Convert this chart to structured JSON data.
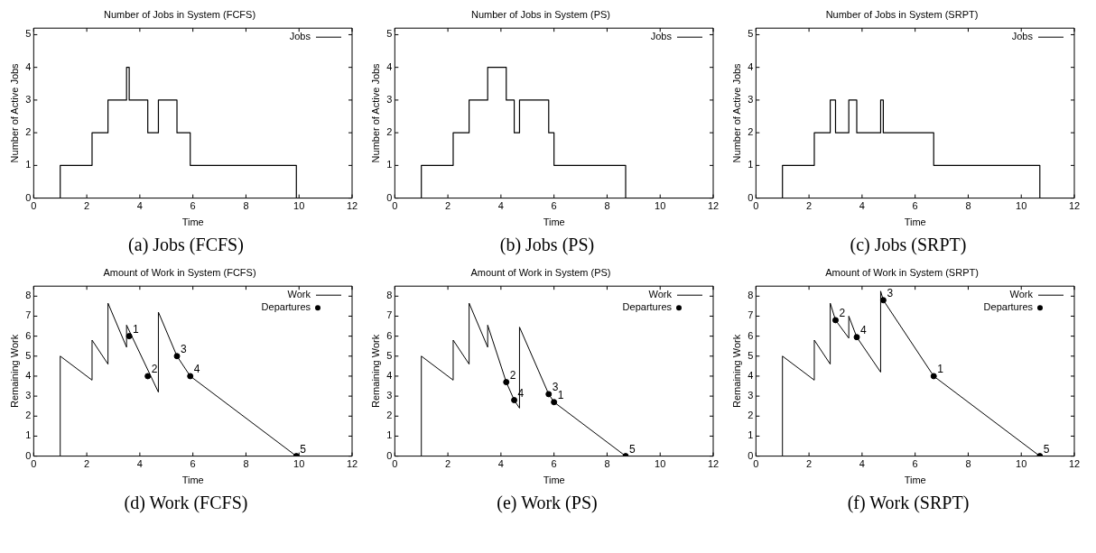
{
  "chart_data": [
    {
      "type": "step",
      "title": "Number of Jobs in System (FCFS)",
      "xlabel": "Time",
      "ylabel": "Number of Active Jobs",
      "annotations": [
        "(a) Jobs (FCFS)"
      ],
      "xlim": [
        0,
        12
      ],
      "xticks": [
        0,
        2,
        4,
        6,
        8,
        10,
        12
      ],
      "ylim": [
        0,
        5.2
      ],
      "yticks": [
        0,
        1,
        2,
        3,
        4,
        5
      ],
      "legend": "top right",
      "series": [
        {
          "name": "Jobs",
          "color": "#000000",
          "x": [
            0,
            1,
            2.2,
            2.8,
            3.5,
            3.6,
            4.3,
            4.7,
            5.4,
            5.9,
            9.9,
            12
          ],
          "values": [
            0,
            1,
            2,
            3,
            4,
            3,
            2,
            3,
            2,
            1,
            0,
            0
          ]
        }
      ]
    },
    {
      "type": "step",
      "title": "Number of Jobs in System (PS)",
      "xlabel": "Time",
      "ylabel": "Number of Active Jobs",
      "annotations": [
        "(b) Jobs (PS)"
      ],
      "xlim": [
        0,
        12
      ],
      "xticks": [
        0,
        2,
        4,
        6,
        8,
        10,
        12
      ],
      "ylim": [
        0,
        5.2
      ],
      "yticks": [
        0,
        1,
        2,
        3,
        4,
        5
      ],
      "legend": "top right",
      "series": [
        {
          "name": "Jobs",
          "color": "#000000",
          "x": [
            0,
            1,
            2.2,
            2.8,
            3.5,
            4.2,
            4.5,
            4.7,
            5.8,
            6.0,
            8.7,
            12
          ],
          "values": [
            0,
            1,
            2,
            3,
            4,
            3,
            2,
            3,
            2,
            1,
            0,
            0
          ]
        }
      ]
    },
    {
      "type": "step",
      "title": "Number of Jobs in System (SRPT)",
      "xlabel": "Time",
      "ylabel": "Number of Active Jobs",
      "annotations": [
        "(c) Jobs (SRPT)"
      ],
      "xlim": [
        0,
        12
      ],
      "xticks": [
        0,
        2,
        4,
        6,
        8,
        10,
        12
      ],
      "ylim": [
        0,
        5.2
      ],
      "yticks": [
        0,
        1,
        2,
        3,
        4,
        5
      ],
      "legend": "top right",
      "series": [
        {
          "name": "Jobs",
          "color": "#000000",
          "x": [
            0,
            1,
            2.2,
            2.8,
            3.0,
            3.5,
            3.8,
            4.7,
            4.8,
            6.7,
            10.7,
            12
          ],
          "values": [
            0,
            1,
            2,
            3,
            2,
            3,
            2,
            3,
            2,
            1,
            0,
            0
          ]
        }
      ]
    },
    {
      "type": "line",
      "title": "Amount of Work in System (FCFS)",
      "xlabel": "Time",
      "ylabel": "Remaining Work",
      "annotations": [
        "(d) Work (FCFS)",
        {
          "text": "1",
          "x": 3.6,
          "y": 6.0
        },
        {
          "text": "2",
          "x": 4.3,
          "y": 4.0
        },
        {
          "text": "3",
          "x": 5.4,
          "y": 5.0
        },
        {
          "text": "4",
          "x": 5.9,
          "y": 4.0
        },
        {
          "text": "5",
          "x": 9.9,
          "y": 0
        }
      ],
      "xlim": [
        0,
        12
      ],
      "xticks": [
        0,
        2,
        4,
        6,
        8,
        10,
        12
      ],
      "ylim": [
        0,
        8.5
      ],
      "yticks": [
        0,
        1,
        2,
        3,
        4,
        5,
        6,
        7,
        8
      ],
      "legend": "top right",
      "series": [
        {
          "name": "Work",
          "color": "#000000",
          "x": [
            1,
            1,
            2.2,
            2.2,
            2.8,
            2.8,
            3.5,
            3.5,
            4.7,
            4.7,
            5.4,
            5.9,
            9.9
          ],
          "values": [
            0,
            5,
            3.8,
            5.8,
            4.6,
            7.65,
            5.45,
            6.55,
            3.2,
            7.2,
            5.0,
            4.0,
            0
          ]
        },
        {
          "name": "Departures",
          "type": "scatter",
          "marker": "circle",
          "color": "#000000",
          "x": [
            3.6,
            4.3,
            5.4,
            5.9,
            9.9
          ],
          "values": [
            6.0,
            4.0,
            5.0,
            4.0,
            0
          ]
        }
      ]
    },
    {
      "type": "line",
      "title": "Amount of Work in System (PS)",
      "xlabel": "Time",
      "ylabel": "Remaining Work",
      "annotations": [
        "(e) Work (PS)",
        {
          "text": "2",
          "x": 4.2,
          "y": 3.7
        },
        {
          "text": "4",
          "x": 4.5,
          "y": 2.8
        },
        {
          "text": "3",
          "x": 5.8,
          "y": 3.1
        },
        {
          "text": "1",
          "x": 6.0,
          "y": 2.7
        },
        {
          "text": "5",
          "x": 8.7,
          "y": 0
        }
      ],
      "xlim": [
        0,
        12
      ],
      "xticks": [
        0,
        2,
        4,
        6,
        8,
        10,
        12
      ],
      "ylim": [
        0,
        8.5
      ],
      "yticks": [
        0,
        1,
        2,
        3,
        4,
        5,
        6,
        7,
        8
      ],
      "legend": "top right",
      "series": [
        {
          "name": "Work",
          "color": "#000000",
          "x": [
            1,
            1,
            2.2,
            2.2,
            2.8,
            2.8,
            3.5,
            3.5,
            4.2,
            4.5,
            4.7,
            4.7,
            5.8,
            6.0,
            8.7
          ],
          "values": [
            0,
            5,
            3.8,
            5.8,
            4.6,
            7.65,
            5.45,
            6.55,
            3.7,
            2.8,
            2.4,
            6.45,
            3.1,
            2.7,
            0
          ]
        },
        {
          "name": "Departures",
          "type": "scatter",
          "marker": "circle",
          "color": "#000000",
          "x": [
            4.2,
            4.5,
            5.8,
            6.0,
            8.7
          ],
          "values": [
            3.7,
            2.8,
            3.1,
            2.7,
            0
          ]
        }
      ]
    },
    {
      "type": "line",
      "title": "Amount of Work in System (SRPT)",
      "xlabel": "Time",
      "ylabel": "Remaining Work",
      "annotations": [
        "(f) Work (SRPT)",
        {
          "text": "2",
          "x": 3.0,
          "y": 6.8
        },
        {
          "text": "4",
          "x": 3.8,
          "y": 5.95
        },
        {
          "text": "3",
          "x": 4.8,
          "y": 7.8
        },
        {
          "text": "1",
          "x": 6.7,
          "y": 4.0
        },
        {
          "text": "5",
          "x": 10.7,
          "y": 0
        }
      ],
      "xlim": [
        0,
        12
      ],
      "xticks": [
        0,
        2,
        4,
        6,
        8,
        10,
        12
      ],
      "ylim": [
        0,
        8.5
      ],
      "yticks": [
        0,
        1,
        2,
        3,
        4,
        5,
        6,
        7,
        8
      ],
      "legend": "top right",
      "series": [
        {
          "name": "Work",
          "color": "#000000",
          "x": [
            1,
            1,
            2.2,
            2.2,
            2.8,
            2.8,
            3.0,
            3.5,
            3.5,
            3.8,
            4.7,
            4.7,
            4.8,
            6.7,
            10.7
          ],
          "values": [
            0,
            5,
            3.8,
            5.8,
            4.6,
            7.65,
            6.8,
            5.9,
            7.0,
            5.95,
            4.2,
            8.25,
            7.8,
            4.0,
            0
          ]
        },
        {
          "name": "Departures",
          "type": "scatter",
          "marker": "circle",
          "color": "#000000",
          "x": [
            3.0,
            3.8,
            4.8,
            6.7,
            10.7
          ],
          "values": [
            6.8,
            5.95,
            7.8,
            4.0,
            0
          ]
        }
      ]
    }
  ]
}
